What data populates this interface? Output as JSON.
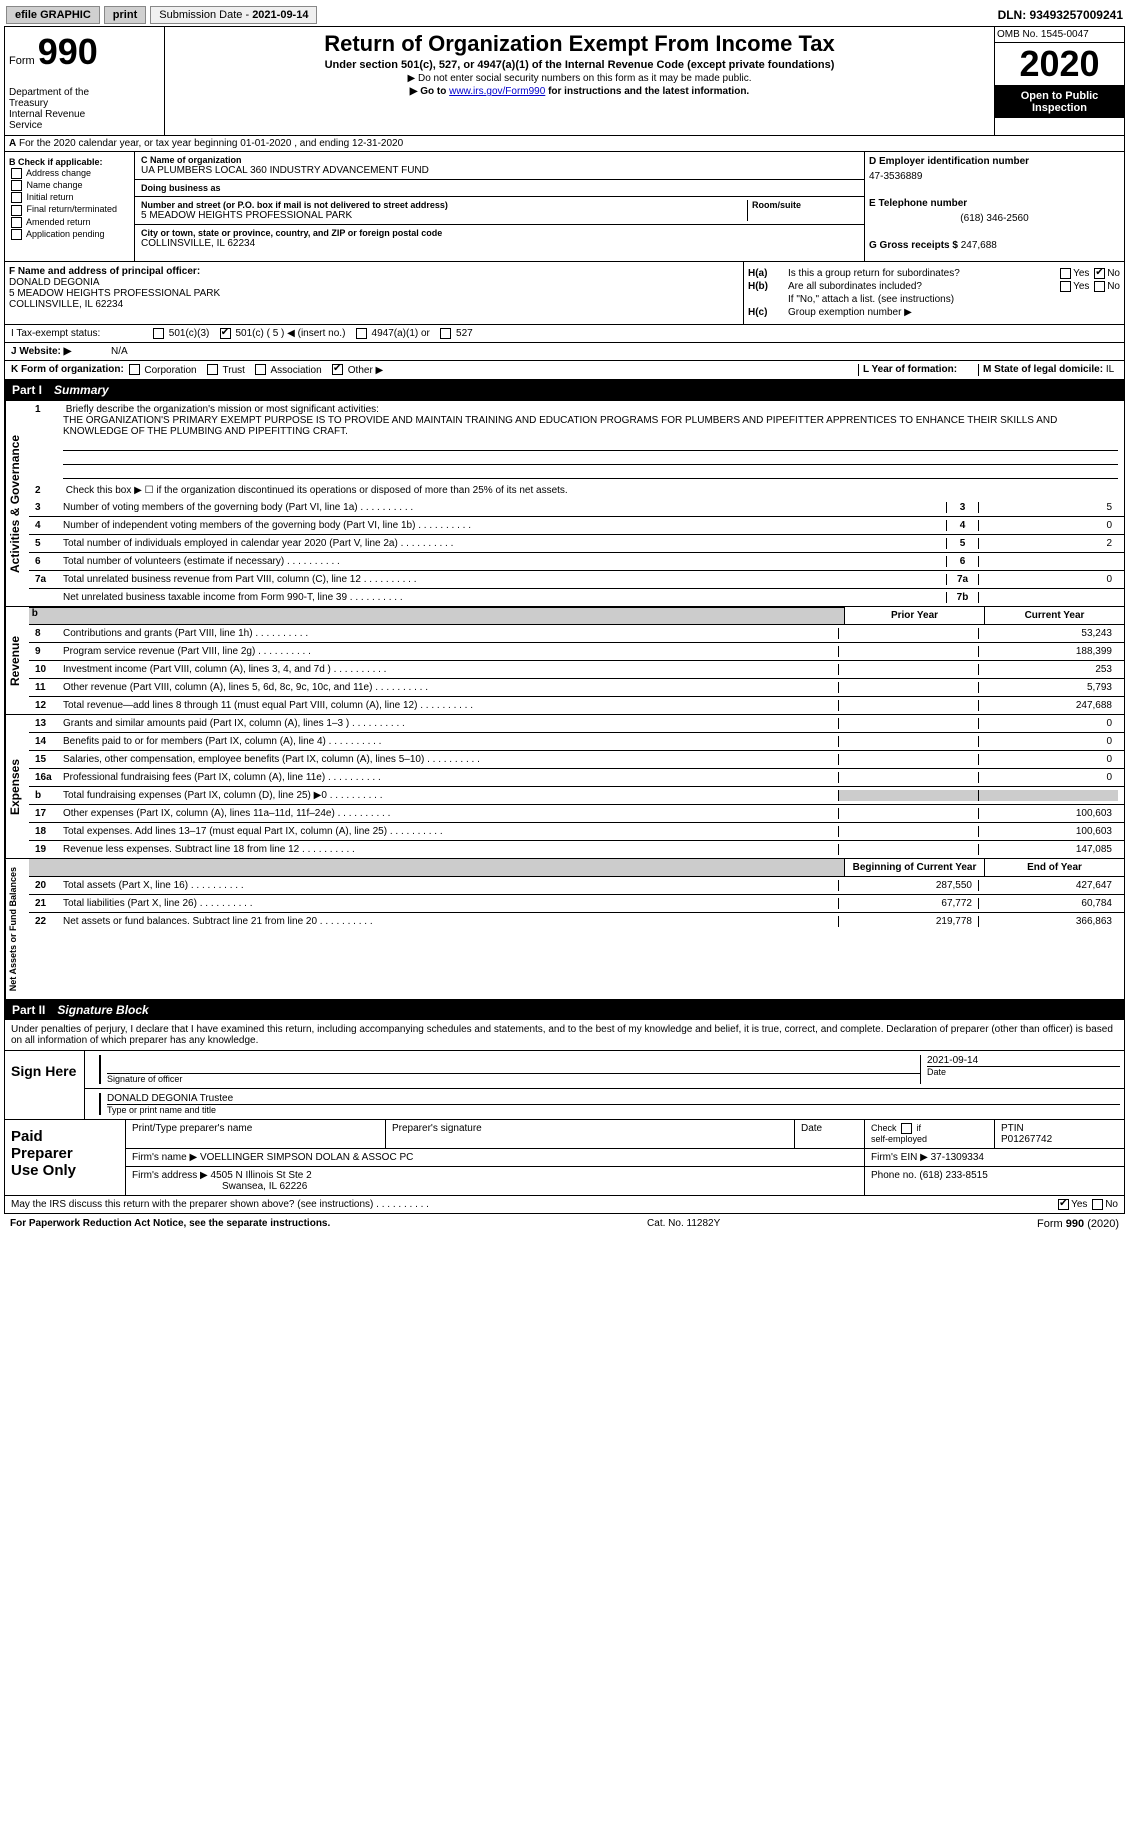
{
  "topbar": {
    "efile": "efile GRAPHIC",
    "print": "print",
    "sub_label": "Submission Date - ",
    "sub_date": "2021-09-14",
    "dln": "DLN: 93493257009241"
  },
  "header": {
    "form_word": "Form",
    "form_num": "990",
    "dept": "Department of the Treasury\nInternal Revenue Service",
    "title": "Return of Organization Exempt From Income Tax",
    "subtitle": "Under section 501(c), 527, or 4947(a)(1) of the Internal Revenue Code (except private foundations)",
    "instr1": "▶ Do not enter social security numbers on this form as it may be made public.",
    "instr2_pre": "▶ Go to ",
    "instr2_link": "www.irs.gov/Form990",
    "instr2_post": " for instructions and the latest information.",
    "omb": "OMB No. 1545-0047",
    "year": "2020",
    "inspect": "Open to Public Inspection"
  },
  "line_a": "For the 2020 calendar year, or tax year beginning 01-01-2020    , and ending 12-31-2020",
  "col_b": {
    "heading": "B Check if applicable:",
    "items": [
      "Address change",
      "Name change",
      "Initial return",
      "Final return/terminated",
      "Amended return",
      "Application pending"
    ]
  },
  "col_c": {
    "name_label": "C Name of organization",
    "name": "UA PLUMBERS LOCAL 360 INDUSTRY ADVANCEMENT FUND",
    "dba_label": "Doing business as",
    "dba": "",
    "addr_label": "Number and street (or P.O. box if mail is not delivered to street address)",
    "room_label": "Room/suite",
    "addr": "5 MEADOW HEIGHTS PROFESSIONAL PARK",
    "city_label": "City or town, state or province, country, and ZIP or foreign postal code",
    "city": "COLLINSVILLE, IL  62234"
  },
  "col_d": {
    "ein_label": "D Employer identification number",
    "ein": "47-3536889",
    "tel_label": "E Telephone number",
    "tel": "(618) 346-2560",
    "gross_label": "G Gross receipts $",
    "gross": "247,688"
  },
  "f_block": {
    "f_label": "F Name and address of principal officer:",
    "f_name": "DONALD DEGONIA",
    "f_addr1": "5 MEADOW HEIGHTS PROFESSIONAL PARK",
    "f_addr2": "COLLINSVILLE, IL  62234",
    "h_a": "Is this a group return for subordinates?",
    "h_b": "Are all subordinates included?",
    "h_b_note": "If \"No,\" attach a list. (see instructions)",
    "h_c": "Group exemption number ▶",
    "yes": "Yes",
    "no": "No"
  },
  "line_i": {
    "label": "I    Tax-exempt status:",
    "opts": [
      "501(c)(3)",
      "501(c) ( 5 ) ◀ (insert no.)",
      "4947(a)(1) or",
      "527"
    ]
  },
  "line_j": {
    "label": "J   Website: ▶",
    "value": "N/A"
  },
  "line_k": {
    "label": "K Form of organization:",
    "opts": [
      "Corporation",
      "Trust",
      "Association",
      "Other ▶"
    ],
    "l_label": "L Year of formation:",
    "m_label": "M State of legal domicile:",
    "m_val": "IL"
  },
  "part1": {
    "num": "Part I",
    "title": "Summary"
  },
  "summary": {
    "tab1": "Activities & Governance",
    "tab2": "Revenue",
    "tab3": "Expenses",
    "tab4": "Net Assets or Fund Balances",
    "l1_label": "Briefly describe the organization's mission or most significant activities:",
    "l1_text": "THE ORGANIZATION'S PRIMARY EXEMPT PURPOSE IS TO PROVIDE AND MAINTAIN TRAINING AND EDUCATION PROGRAMS FOR PLUMBERS AND PIPEFITTER APPRENTICES TO ENHANCE THEIR SKILLS AND KNOWLEDGE OF THE PLUMBING AND PIPEFITTING CRAFT.",
    "l2": "Check this box ▶ ☐  if the organization discontinued its operations or disposed of more than 25% of its net assets.",
    "lines_gov": [
      {
        "n": "3",
        "t": "Number of voting members of the governing body (Part VI, line 1a)",
        "box": "3",
        "v": "5"
      },
      {
        "n": "4",
        "t": "Number of independent voting members of the governing body (Part VI, line 1b)",
        "box": "4",
        "v": "0"
      },
      {
        "n": "5",
        "t": "Total number of individuals employed in calendar year 2020 (Part V, line 2a)",
        "box": "5",
        "v": "2"
      },
      {
        "n": "6",
        "t": "Total number of volunteers (estimate if necessary)",
        "box": "6",
        "v": ""
      },
      {
        "n": "7a",
        "t": "Total unrelated business revenue from Part VIII, column (C), line 12",
        "box": "7a",
        "v": "0"
      },
      {
        "n": "",
        "t": "Net unrelated business taxable income from Form 990-T, line 39",
        "box": "7b",
        "v": ""
      }
    ],
    "col_py": "Prior Year",
    "col_cy": "Current Year",
    "lines_rev": [
      {
        "n": "8",
        "t": "Contributions and grants (Part VIII, line 1h)",
        "py": "",
        "cy": "53,243"
      },
      {
        "n": "9",
        "t": "Program service revenue (Part VIII, line 2g)",
        "py": "",
        "cy": "188,399"
      },
      {
        "n": "10",
        "t": "Investment income (Part VIII, column (A), lines 3, 4, and 7d )",
        "py": "",
        "cy": "253"
      },
      {
        "n": "11",
        "t": "Other revenue (Part VIII, column (A), lines 5, 6d, 8c, 9c, 10c, and 11e)",
        "py": "",
        "cy": "5,793"
      },
      {
        "n": "12",
        "t": "Total revenue—add lines 8 through 11 (must equal Part VIII, column (A), line 12)",
        "py": "",
        "cy": "247,688"
      }
    ],
    "lines_exp": [
      {
        "n": "13",
        "t": "Grants and similar amounts paid (Part IX, column (A), lines 1–3 )",
        "py": "",
        "cy": "0"
      },
      {
        "n": "14",
        "t": "Benefits paid to or for members (Part IX, column (A), line 4)",
        "py": "",
        "cy": "0"
      },
      {
        "n": "15",
        "t": "Salaries, other compensation, employee benefits (Part IX, column (A), lines 5–10)",
        "py": "",
        "cy": "0"
      },
      {
        "n": "16a",
        "t": "Professional fundraising fees (Part IX, column (A), line 11e)",
        "py": "",
        "cy": "0"
      },
      {
        "n": "b",
        "t": "Total fundraising expenses (Part IX, column (D), line 25) ▶0",
        "py": "GRAY",
        "cy": "GRAY"
      },
      {
        "n": "17",
        "t": "Other expenses (Part IX, column (A), lines 11a–11d, 11f–24e)",
        "py": "",
        "cy": "100,603"
      },
      {
        "n": "18",
        "t": "Total expenses. Add lines 13–17 (must equal Part IX, column (A), line 25)",
        "py": "",
        "cy": "100,603"
      },
      {
        "n": "19",
        "t": "Revenue less expenses. Subtract line 18 from line 12",
        "py": "",
        "cy": "147,085"
      }
    ],
    "col_bcy": "Beginning of Current Year",
    "col_eoy": "End of Year",
    "lines_net": [
      {
        "n": "20",
        "t": "Total assets (Part X, line 16)",
        "py": "287,550",
        "cy": "427,647"
      },
      {
        "n": "21",
        "t": "Total liabilities (Part X, line 26)",
        "py": "67,772",
        "cy": "60,784"
      },
      {
        "n": "22",
        "t": "Net assets or fund balances. Subtract line 21 from line 20",
        "py": "219,778",
        "cy": "366,863"
      }
    ]
  },
  "part2": {
    "num": "Part II",
    "title": "Signature Block"
  },
  "sig": {
    "perjury": "Under penalties of perjury, I declare that I have examined this return, including accompanying schedules and statements, and to the best of my knowledge and belief, it is true, correct, and complete. Declaration of preparer (other than officer) is based on all information of which preparer has any knowledge.",
    "sign_here": "Sign Here",
    "sig_officer": "Signature of officer",
    "date_label": "Date",
    "date": "2021-09-14",
    "name_title": "DONALD DEGONIA  Trustee",
    "name_label": "Type or print name and title",
    "paid_label": "Paid Preparer Use Only",
    "h1": "Print/Type preparer's name",
    "h2": "Preparer's signature",
    "h3": "Date",
    "h4a": "Check ☐ if self-employed",
    "h4b": "PTIN",
    "ptin": "P01267742",
    "firm_name_l": "Firm's name    ▶",
    "firm_name": "VOELLINGER SIMPSON DOLAN & ASSOC PC",
    "firm_ein_l": "Firm's EIN ▶",
    "firm_ein": "37-1309334",
    "firm_addr_l": "Firm's address ▶",
    "firm_addr1": "4505 N Illinois St Ste 2",
    "firm_addr2": "Swansea, IL  62226",
    "phone_l": "Phone no.",
    "phone": "(618) 233-8515",
    "discuss": "May the IRS discuss this return with the preparer shown above? (see instructions)"
  },
  "footer": {
    "left": "For Paperwork Reduction Act Notice, see the separate instructions.",
    "mid": "Cat. No. 11282Y",
    "right_a": "Form ",
    "right_b": "990",
    "right_c": " (2020)"
  }
}
